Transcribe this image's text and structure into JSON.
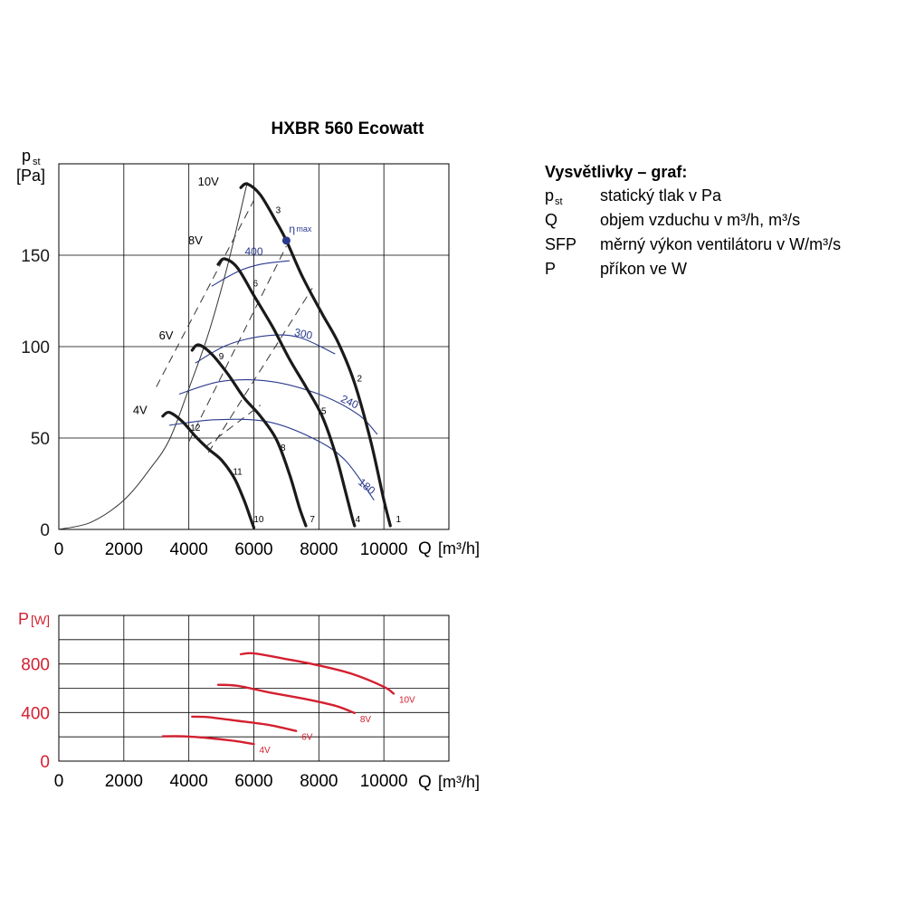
{
  "legend": {
    "title": "Vysvětlivky – graf:",
    "rows": [
      {
        "sym": "p",
        "sub": "st",
        "desc": "statický tlak v Pa"
      },
      {
        "sym": "Q",
        "sub": "",
        "desc": "objem vzduchu v m³/h, m³/s"
      },
      {
        "sym": "SFP",
        "sub": "",
        "desc": "měrný výkon ventilátoru v W/m³/s"
      },
      {
        "sym": "P",
        "sub": "",
        "desc": "příkon ve W"
      }
    ]
  },
  "colors": {
    "fan_curve": "#1a1a1a",
    "sfp_curve": "#2a3a8c",
    "power_curve": "#d42030",
    "grid": "#000000"
  },
  "chart_data": [
    {
      "type": "line",
      "title": "HXBR 560 Ecowatt",
      "ylabel_main": "p",
      "ylabel_sub": "st",
      "ylabel_unit": "[Pa]",
      "xlabel": "Q",
      "xlabel_unit": "[m³/h]",
      "xlim": [
        0,
        12000
      ],
      "ylim": [
        0,
        200
      ],
      "x_ticks": [
        0,
        2000,
        4000,
        6000,
        8000,
        10000
      ],
      "y_ticks": [
        0,
        50,
        100,
        150
      ],
      "series": [
        {
          "name": "10V",
          "x": [
            5600,
            5800,
            6200,
            6700,
            7000,
            7500,
            8100,
            8600,
            9100,
            9600,
            10000,
            10200
          ],
          "y": [
            187,
            189,
            183,
            168,
            158,
            138,
            118,
            102,
            80,
            48,
            16,
            2
          ]
        },
        {
          "name": "8V",
          "x": [
            4900,
            5100,
            5500,
            6000,
            6600,
            7100,
            7600,
            8100,
            8500,
            8800,
            9000,
            9100
          ],
          "y": [
            145,
            148,
            143,
            128,
            110,
            93,
            78,
            62,
            42,
            22,
            8,
            2
          ]
        },
        {
          "name": "6V",
          "x": [
            4100,
            4300,
            4700,
            5200,
            5700,
            6200,
            6700,
            7100,
            7400,
            7600
          ],
          "y": [
            98,
            101,
            96,
            85,
            72,
            62,
            49,
            30,
            12,
            2
          ]
        },
        {
          "name": "4V",
          "x": [
            3200,
            3400,
            3800,
            4200,
            4600,
            5000,
            5400,
            5700,
            5900,
            6000
          ],
          "y": [
            62,
            64,
            59,
            51,
            44,
            38,
            28,
            16,
            6,
            1
          ]
        }
      ],
      "system_curve": {
        "x": [
          0,
          1000,
          2000,
          2800,
          3400,
          4000,
          4600,
          5200,
          5800
        ],
        "y": [
          0,
          4,
          16,
          33,
          49,
          77,
          107,
          145,
          190
        ]
      },
      "sfp_curves": [
        {
          "name": "400",
          "x": [
            4700,
            5500,
            6200,
            7100
          ],
          "y": [
            133,
            141,
            145,
            147
          ]
        },
        {
          "name": "300",
          "x": [
            4200,
            5200,
            6400,
            7400,
            8500
          ],
          "y": [
            91,
            101,
            106,
            105,
            96
          ]
        },
        {
          "name": "240",
          "x": [
            3700,
            5000,
            6500,
            8000,
            9200,
            9800
          ],
          "y": [
            74,
            81,
            81,
            74,
            63,
            52
          ]
        },
        {
          "name": "180",
          "x": [
            3400,
            4800,
            6400,
            7800,
            8800,
            9700
          ],
          "y": [
            57,
            60,
            59,
            50,
            38,
            16
          ]
        }
      ],
      "efficiency_lines": [
        {
          "x": [
            3000,
            6000
          ],
          "y": [
            78,
            180
          ]
        },
        {
          "x": [
            4000,
            7000
          ],
          "y": [
            48,
            155
          ]
        },
        {
          "x": [
            4600,
            7800
          ],
          "y": [
            42,
            132
          ]
        },
        {
          "x": [
            4500,
            6200
          ],
          "y": [
            45,
            68
          ]
        }
      ],
      "point_labels": [
        {
          "text": "1",
          "x": 10450,
          "y": 4
        },
        {
          "text": "2",
          "x": 9250,
          "y": 81
        },
        {
          "text": "3",
          "x": 6750,
          "y": 173
        },
        {
          "text": "4",
          "x": 9200,
          "y": 4
        },
        {
          "text": "5",
          "x": 8150,
          "y": 63
        },
        {
          "text": "6",
          "x": 6050,
          "y": 133
        },
        {
          "text": "7",
          "x": 7800,
          "y": 4
        },
        {
          "text": "8",
          "x": 6900,
          "y": 43
        },
        {
          "text": "9",
          "x": 5000,
          "y": 93
        },
        {
          "text": "10",
          "x": 6150,
          "y": 4
        },
        {
          "text": "11",
          "x": 5500,
          "y": 30
        },
        {
          "text": "12",
          "x": 4200,
          "y": 54
        }
      ],
      "curve_labels": [
        {
          "text": "10V",
          "x": 4600,
          "y": 188
        },
        {
          "text": "8V",
          "x": 4200,
          "y": 156
        },
        {
          "text": "6V",
          "x": 3300,
          "y": 104
        },
        {
          "text": "4V",
          "x": 2500,
          "y": 63
        }
      ],
      "eta_max": {
        "label": "η",
        "label_sub": "max",
        "x": 7000,
        "y": 158
      }
    },
    {
      "type": "line",
      "ylabel_main": "P",
      "ylabel_unit": "[W]",
      "xlabel": "Q",
      "xlabel_unit": "[m³/h]",
      "xlim": [
        0,
        12000
      ],
      "ylim": [
        0,
        1200
      ],
      "x_ticks": [
        0,
        2000,
        4000,
        6000,
        8000,
        10000
      ],
      "y_ticks": [
        0,
        400,
        800
      ],
      "series": [
        {
          "name": "10V",
          "x": [
            5600,
            6000,
            7000,
            8000,
            9000,
            10000,
            10300
          ],
          "y": [
            880,
            888,
            840,
            788,
            720,
            612,
            556
          ]
        },
        {
          "name": "8V",
          "x": [
            4900,
            5500,
            6500,
            7500,
            8500,
            9100
          ],
          "y": [
            628,
            620,
            564,
            516,
            456,
            396
          ]
        },
        {
          "name": "6V",
          "x": [
            4100,
            4600,
            5500,
            6500,
            7300
          ],
          "y": [
            366,
            362,
            332,
            296,
            248
          ]
        },
        {
          "name": "4V",
          "x": [
            3200,
            3800,
            4600,
            5400,
            6000
          ],
          "y": [
            204,
            204,
            190,
            166,
            140
          ]
        }
      ]
    }
  ]
}
